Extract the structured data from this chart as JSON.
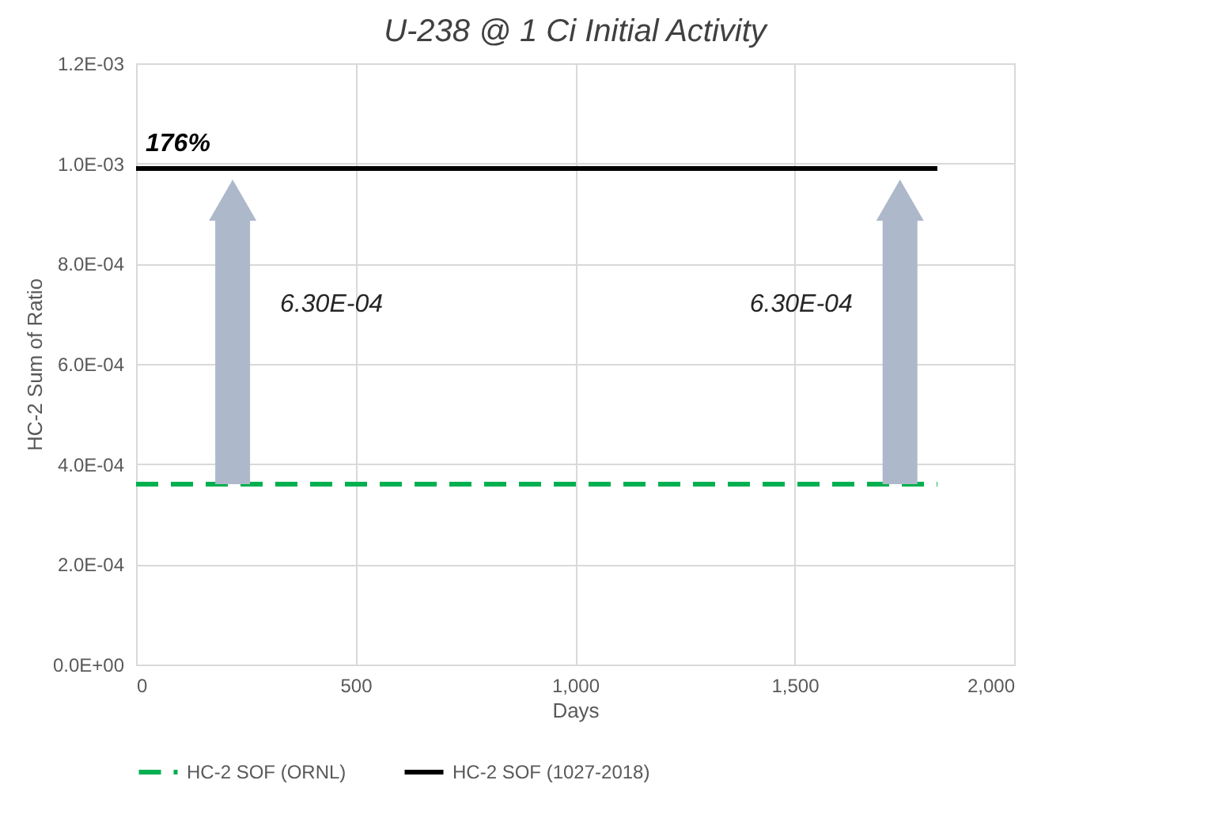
{
  "chart_data": {
    "type": "line",
    "title": "U-238 @ 1 Ci Initial Activity",
    "xlabel": "Days",
    "ylabel": "HC-2 Sum of Ratio",
    "xlim": [
      0,
      2000
    ],
    "xticks": [
      {
        "value": 0,
        "label": "0"
      },
      {
        "value": 500,
        "label": "500"
      },
      {
        "value": 1000,
        "label": "1,000"
      },
      {
        "value": 1500,
        "label": "1,500"
      },
      {
        "value": 2000,
        "label": "2,000"
      }
    ],
    "ylim": [
      0,
      0.0012
    ],
    "yticks": [
      {
        "value": 0,
        "label": "0.0E+00"
      },
      {
        "value": 0.0002,
        "label": "2.0E-04"
      },
      {
        "value": 0.0004,
        "label": "4.0E-04"
      },
      {
        "value": 0.0006,
        "label": "6.0E-04"
      },
      {
        "value": 0.0008,
        "label": "8.0E-04"
      },
      {
        "value": 0.001,
        "label": "1.0E-03"
      },
      {
        "value": 0.0012,
        "label": "1.2E-03"
      }
    ],
    "x": [
      0,
      1825
    ],
    "series": [
      {
        "name": "HC-2 SOF (ORNL)",
        "color": "#00b050",
        "line_style": "dashed",
        "values": [
          0.00036,
          0.00036
        ]
      },
      {
        "name": "HC-2 SOF (1027-2018)",
        "color": "#000000",
        "line_style": "solid",
        "values": [
          0.00099,
          0.00099
        ]
      }
    ],
    "annotations": [
      "176%",
      "6.30E-04",
      "6.30E-04"
    ],
    "grid": true,
    "legend": "bottom",
    "marker": "none"
  }
}
